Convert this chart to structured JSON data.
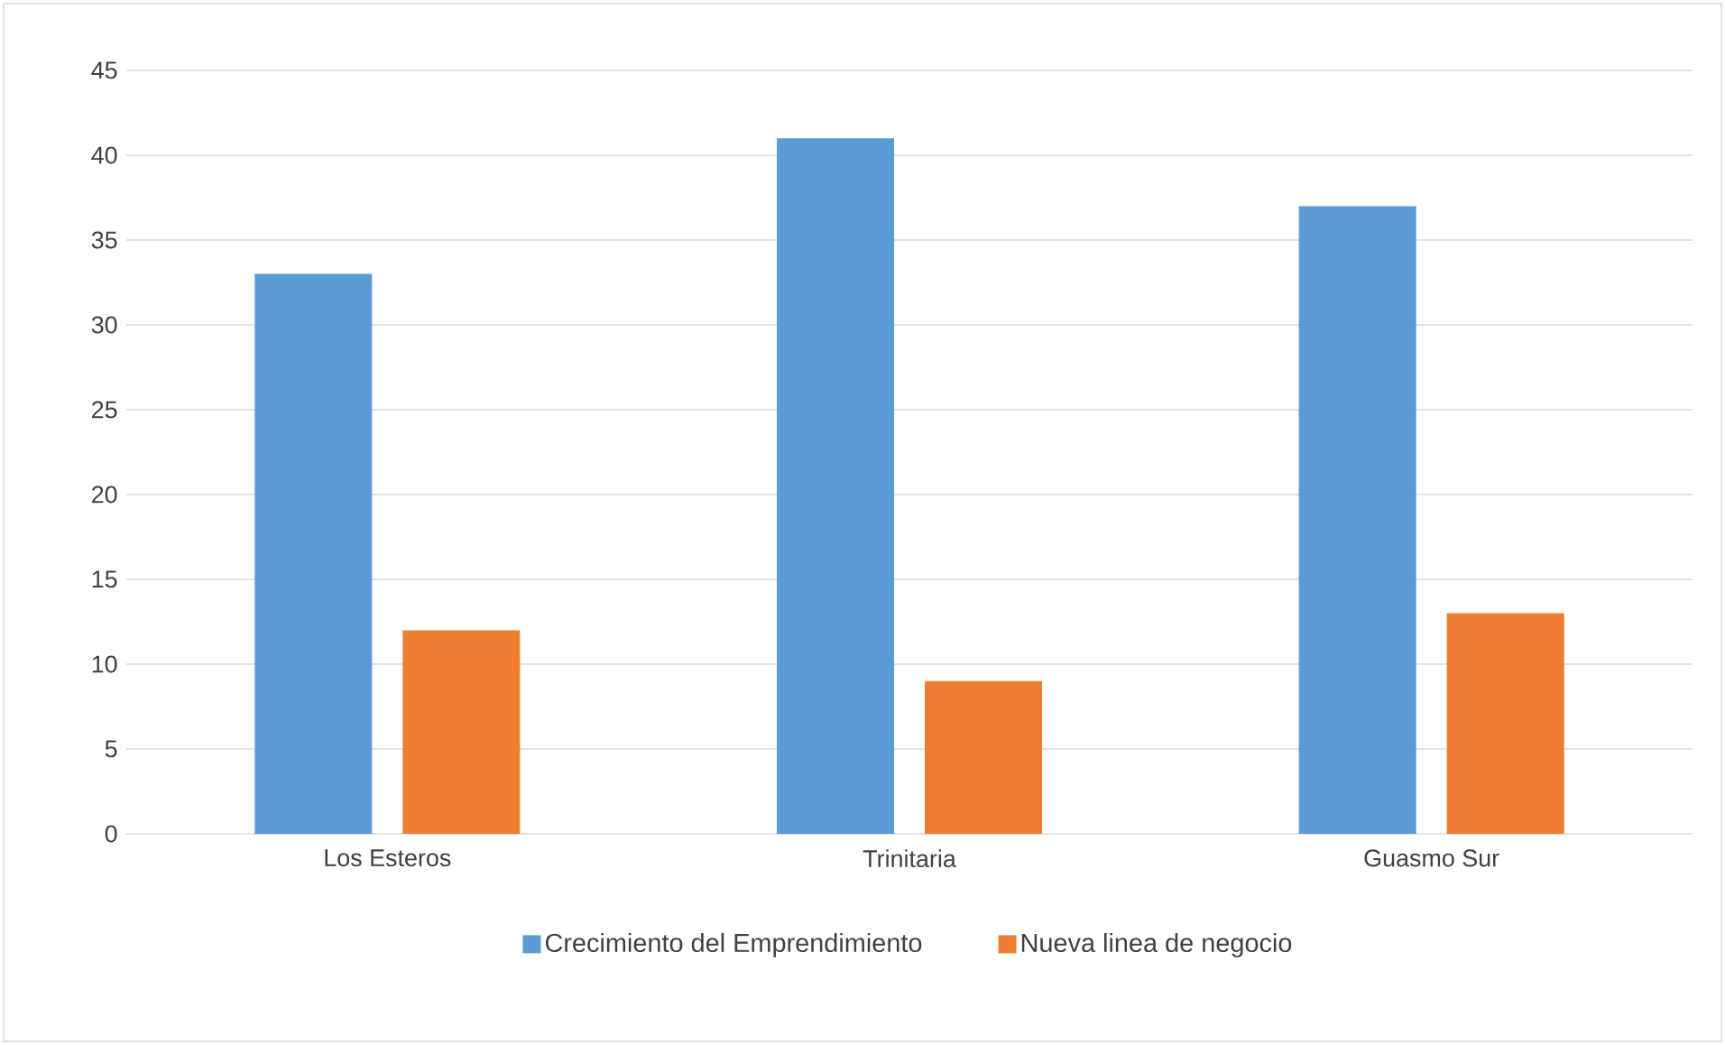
{
  "chart_data": {
    "type": "bar",
    "categories": [
      "Los Esteros",
      "Trinitaria",
      "Guasmo Sur"
    ],
    "series": [
      {
        "name": "Crecimiento del Emprendimiento",
        "color": "#5b9bd5",
        "values": [
          33,
          41,
          37
        ]
      },
      {
        "name": "Nueva linea de negocio",
        "color": "#ed7d31",
        "values": [
          12,
          9,
          13
        ]
      }
    ],
    "ylim": [
      0,
      45
    ],
    "yticks": [
      0,
      5,
      10,
      15,
      20,
      25,
      30,
      35,
      40,
      45
    ],
    "grid": "y",
    "legend": "bottom"
  }
}
